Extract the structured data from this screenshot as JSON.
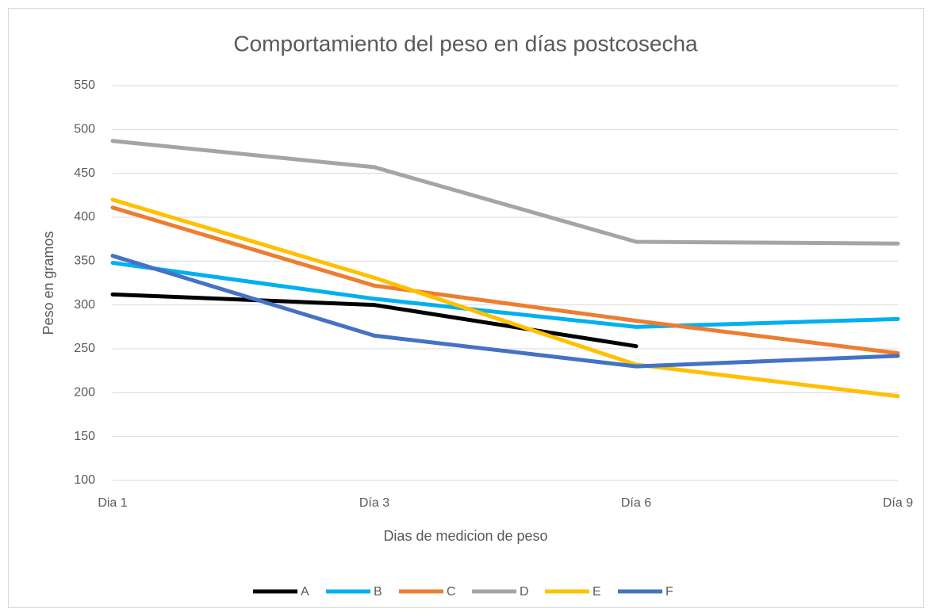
{
  "chart_data": {
    "type": "line",
    "title": "Comportamiento del peso en días postcosecha",
    "x_label": "Dias de medicion de peso",
    "y_label": "Peso en gramos",
    "categories": [
      "Dia 1",
      "Día 3",
      "Día 6",
      "Día 9"
    ],
    "ylim": [
      100,
      550
    ],
    "yticks": [
      100,
      150,
      200,
      250,
      300,
      350,
      400,
      450,
      500,
      550
    ],
    "grid": true,
    "legend": "bottom",
    "series": [
      {
        "name": "A",
        "color": "#000000",
        "values": [
          312,
          300,
          253,
          null
        ]
      },
      {
        "name": "B",
        "color": "#00b0f0",
        "values": [
          348,
          307,
          275,
          284
        ]
      },
      {
        "name": "C",
        "color": "#ed7d31",
        "values": [
          411,
          322,
          282,
          245
        ]
      },
      {
        "name": "D",
        "color": "#a5a5a5",
        "values": [
          487,
          457,
          372,
          370
        ]
      },
      {
        "name": "E",
        "color": "#ffc000",
        "values": [
          420,
          331,
          232,
          196
        ]
      },
      {
        "name": "F",
        "color": "#4472c4",
        "values": [
          356,
          265,
          230,
          242
        ]
      }
    ]
  }
}
